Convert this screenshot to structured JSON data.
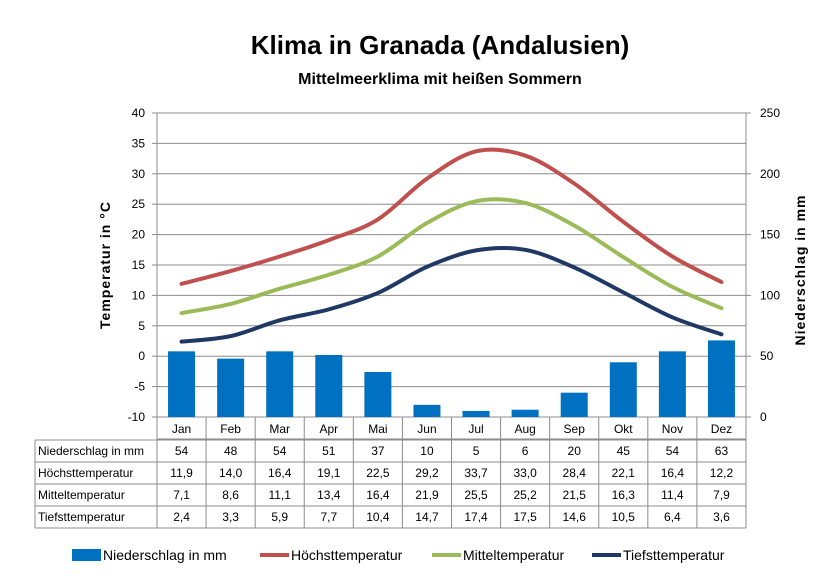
{
  "title": "Klima in Granada (Andalusien)",
  "subtitle": "Mittelmeerklima mit heißen Sommern",
  "chart_data": {
    "type": "bar+line",
    "categories": [
      "Jan",
      "Feb",
      "Mar",
      "Apr",
      "Mai",
      "Jun",
      "Jul",
      "Aug",
      "Sep",
      "Okt",
      "Nov",
      "Dez"
    ],
    "y_left": {
      "label": "Temperatur in °C",
      "range": [
        -10,
        40
      ],
      "ticks": [
        "-10",
        "-5",
        "0",
        "5",
        "10",
        "15",
        "20",
        "25",
        "30",
        "35",
        "40"
      ]
    },
    "y_right": {
      "label": "Niederschlag in mm",
      "range": [
        0,
        250
      ],
      "ticks": [
        "0",
        "50",
        "100",
        "150",
        "200",
        "250"
      ]
    },
    "series": [
      {
        "name": "Niederschlag in mm",
        "type": "bar",
        "axis": "right",
        "color": "#0070C0",
        "values": [
          54,
          48,
          54,
          51,
          37,
          10,
          5,
          6,
          20,
          45,
          54,
          63
        ],
        "labels": [
          "54",
          "48",
          "54",
          "51",
          "37",
          "10",
          "5",
          "6",
          "20",
          "45",
          "54",
          "63"
        ]
      },
      {
        "name": "Höchsttemperatur",
        "type": "line",
        "axis": "left",
        "color": "#C0504D",
        "values": [
          11.9,
          14.0,
          16.4,
          19.1,
          22.5,
          29.2,
          33.7,
          33.0,
          28.4,
          22.1,
          16.4,
          12.2
        ],
        "labels": [
          "11,9",
          "14,0",
          "16,4",
          "19,1",
          "22,5",
          "29,2",
          "33,7",
          "33,0",
          "28,4",
          "22,1",
          "16,4",
          "12,2"
        ]
      },
      {
        "name": "Mitteltemperatur",
        "type": "line",
        "axis": "left",
        "color": "#9BBB59",
        "values": [
          7.1,
          8.6,
          11.1,
          13.4,
          16.4,
          21.9,
          25.5,
          25.2,
          21.5,
          16.3,
          11.4,
          7.9
        ],
        "labels": [
          "7,1",
          "8,6",
          "11,1",
          "13,4",
          "16,4",
          "21,9",
          "25,5",
          "25,2",
          "21,5",
          "16,3",
          "11,4",
          "7,9"
        ]
      },
      {
        "name": "Tiefsttemperatur",
        "type": "line",
        "axis": "left",
        "color": "#1F3864",
        "values": [
          2.4,
          3.3,
          5.9,
          7.7,
          10.4,
          14.7,
          17.4,
          17.5,
          14.6,
          10.5,
          6.4,
          3.6
        ],
        "labels": [
          "2,4",
          "3,3",
          "5,9",
          "7,7",
          "10,4",
          "14,7",
          "17,4",
          "17,5",
          "14,6",
          "10,5",
          "6,4",
          "3,6"
        ]
      }
    ],
    "grid": true,
    "legend": "bottom"
  }
}
